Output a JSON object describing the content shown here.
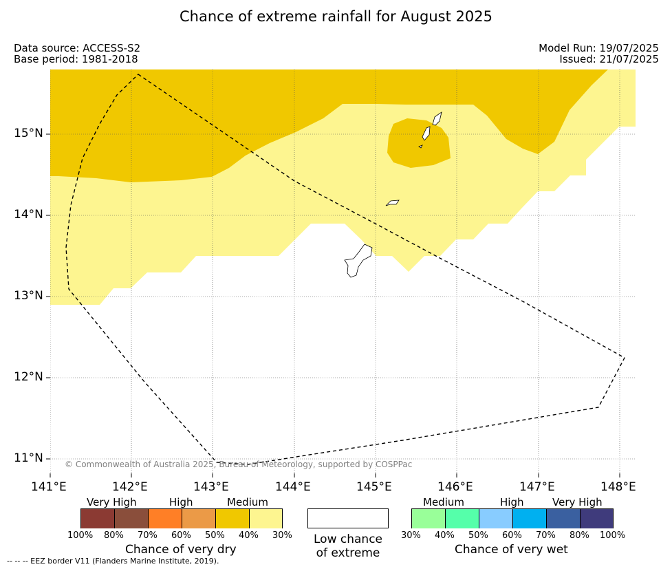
{
  "title": "Chance of extreme rainfall for August 2025",
  "meta": {
    "data_source": "Data source: ACCESS-S2",
    "base_period": "Base period: 1981-2018",
    "model_run": "Model Run: 19/07/2025",
    "issued": "Issued: 21/07/2025"
  },
  "map": {
    "lon_ticks": [
      "141°E",
      "142°E",
      "143°E",
      "144°E",
      "145°E",
      "146°E",
      "147°E",
      "148°E"
    ],
    "lat_ticks": [
      "15°N",
      "14°N",
      "13°N",
      "12°N",
      "11°N"
    ],
    "copyright": "© Commonwealth of Australia 2025, Bureau of Meteorology, supported by COSPPac",
    "colors": {
      "medium_dry": "#f0c800",
      "lowmed_dry": "#fdf590",
      "land_outline": "#000000"
    }
  },
  "legend": {
    "dry": {
      "headers": [
        "Very High",
        "High",
        "Medium"
      ],
      "tick_labels": [
        "100%",
        "80%",
        "70%",
        "60%",
        "50%",
        "40%",
        "30%"
      ],
      "colors": [
        "#8b3a33",
        "#8a4e3b",
        "#ff7f26",
        "#eb9a47",
        "#f0c800",
        "#fdf590"
      ],
      "caption": "Chance of very dry"
    },
    "low": {
      "line1": "Low chance",
      "line2": "of extreme"
    },
    "wet": {
      "headers": [
        "Medium",
        "High",
        "Very High"
      ],
      "tick_labels": [
        "30%",
        "40%",
        "50%",
        "60%",
        "70%",
        "80%",
        "100%"
      ],
      "colors": [
        "#99ff99",
        "#55ffaa",
        "#88ccff",
        "#00b0f0",
        "#3a60a0",
        "#3f3b7c"
      ],
      "caption": "Chance of very wet"
    }
  },
  "footer": "-- -- -- EEZ border V11 (Flanders Marine Institute, 2019)."
}
